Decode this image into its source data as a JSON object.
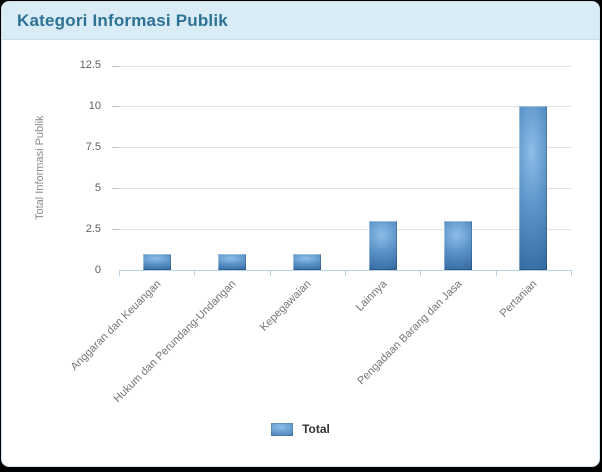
{
  "header": {
    "title": "Kategori Informasi Publik"
  },
  "chart_data": {
    "type": "bar",
    "title": "Kategori Informasi Publik",
    "categories": [
      "Anggaran dan Keuangan",
      "Hukum dan Perundang-Undangan",
      "Kepegawaian",
      "Lainnya",
      "Pengadaan Barang dan Jasa",
      "Pertanian"
    ],
    "series": [
      {
        "name": "Total",
        "values": [
          1,
          1,
          1,
          3,
          3,
          10
        ]
      }
    ],
    "xlabel": "",
    "ylabel": "Total Informasi Publik",
    "ylim": [
      0,
      12.5
    ],
    "yticks": [
      0,
      2.5,
      5,
      7.5,
      10,
      12.5
    ],
    "grid": true,
    "legend_position": "bottom"
  },
  "colors": {
    "header_bg": "#d9ecf6",
    "header_text": "#2d7295",
    "bar_main": "#4e87bd",
    "gridline": "#e3e3e3",
    "axis_line": "#b7d4e6",
    "tick_text": "#606060",
    "category_text": "#757575"
  }
}
